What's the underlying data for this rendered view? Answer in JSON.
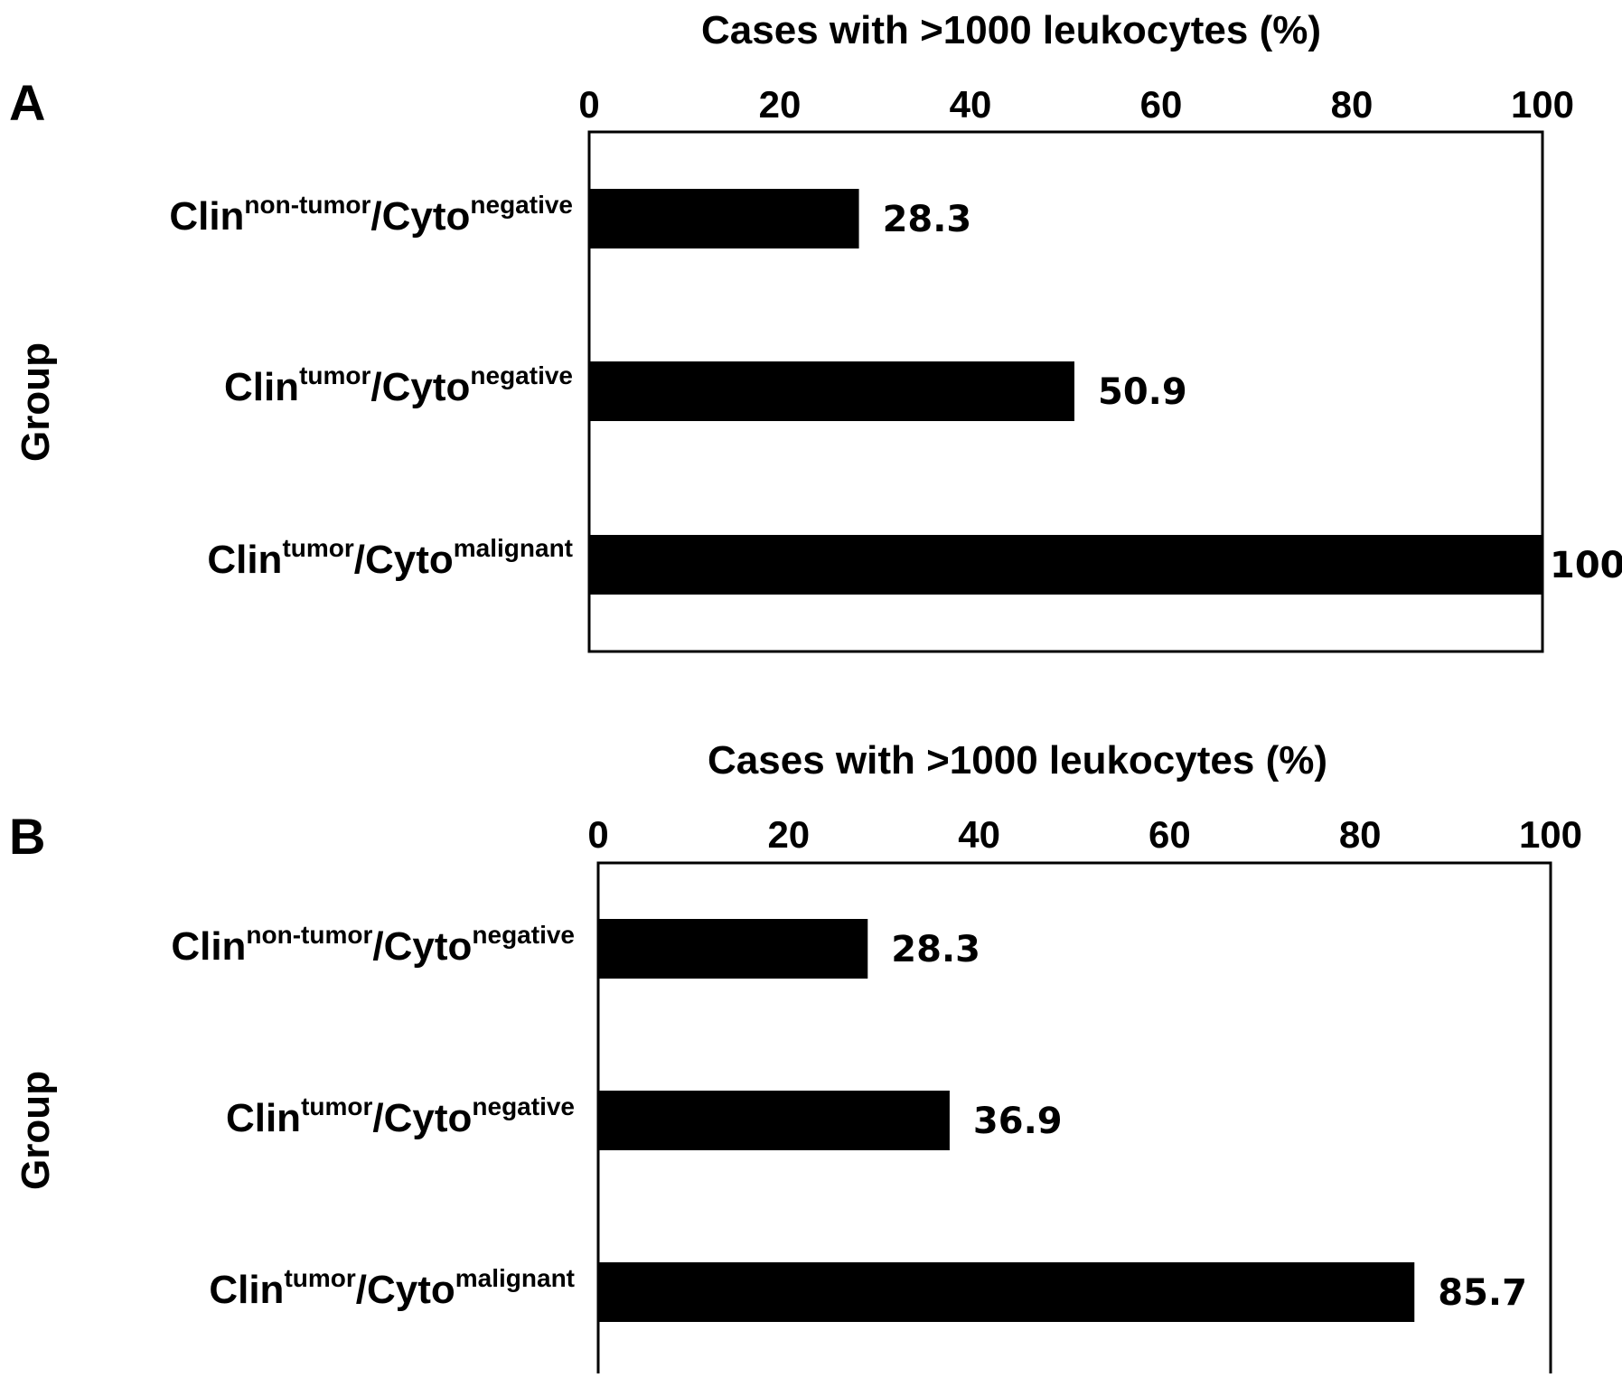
{
  "chart_data": [
    {
      "type": "bar",
      "orientation": "horizontal",
      "panel": "A",
      "xlabel": "Cases with >1000 leukocytes (%)",
      "ylabel": "Group",
      "xlim": [
        0,
        100
      ],
      "xticks": [
        "0",
        "20",
        "40",
        "60",
        "80",
        "100"
      ],
      "categories": [
        {
          "base": "Clin",
          "sup1": "non-tumor",
          "mid": "/Cyto",
          "sup2": "negative"
        },
        {
          "base": "Clin",
          "sup1": "tumor",
          "mid": "/Cyto",
          "sup2": "negative"
        },
        {
          "base": "Clin",
          "sup1": "tumor",
          "mid": "/Cyto",
          "sup2": "malignant"
        }
      ],
      "values": [
        28.3,
        50.9,
        100
      ],
      "value_labels": [
        "28.3",
        "50.9",
        "100"
      ],
      "bar_color": "#000000",
      "grid": false
    },
    {
      "type": "bar",
      "orientation": "horizontal",
      "panel": "B",
      "xlabel": "Cases with >1000 leukocytes (%)",
      "ylabel": "Group",
      "xlim": [
        0,
        100
      ],
      "xticks": [
        "0",
        "20",
        "40",
        "60",
        "80",
        "100"
      ],
      "categories": [
        {
          "base": "Clin",
          "sup1": "non-tumor",
          "mid": "/Cyto",
          "sup2": "negative"
        },
        {
          "base": "Clin",
          "sup1": "tumor",
          "mid": "/Cyto",
          "sup2": "negative"
        },
        {
          "base": "Clin",
          "sup1": "tumor",
          "mid": "/Cyto",
          "sup2": "malignant"
        }
      ],
      "values": [
        28.3,
        36.9,
        85.7
      ],
      "value_labels": [
        "28.3",
        "36.9",
        "85.7"
      ],
      "bar_color": "#000000",
      "grid": false
    }
  ]
}
